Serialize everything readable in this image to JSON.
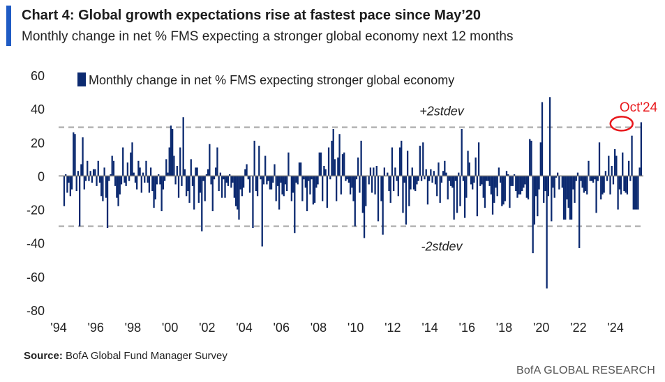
{
  "header": {
    "title": "Chart 4: Global growth expectations rise at fastest pace since May’20",
    "subtitle": "Monthly change in net % FMS expecting a stronger global economy next 12 months"
  },
  "footer": {
    "source_label": "Source:",
    "source_text": " BofA Global Fund Manager Survey",
    "brand": "BofA GLOBAL RESEARCH"
  },
  "colors": {
    "bar": "#0c2a70",
    "accent": "#1f5bc4",
    "highlight": "#e8171b",
    "band": "#b3b3b3"
  },
  "chart_data": {
    "type": "bar",
    "title": "Chart 4: Global growth expectations rise at fastest pace since May’20",
    "subtitle": "Monthly change in net % FMS expecting a stronger global economy next 12 months",
    "legend": "Monthly change in net % FMS expecting stronger global economy",
    "legend_position": "top-left",
    "ylim": [
      -80,
      60
    ],
    "yticks": [
      60,
      40,
      20,
      0,
      -20,
      -40,
      -60,
      -80
    ],
    "xlim": [
      1994,
      2025.5
    ],
    "xticks": [
      {
        "label": "'94",
        "value": 1994
      },
      {
        "label": "'96",
        "value": 1996
      },
      {
        "label": "'98",
        "value": 1998
      },
      {
        "label": "'00",
        "value": 2000
      },
      {
        "label": "'02",
        "value": 2002
      },
      {
        "label": "'04",
        "value": 2004
      },
      {
        "label": "'06",
        "value": 2006
      },
      {
        "label": "'08",
        "value": 2008
      },
      {
        "label": "'10",
        "value": 2010
      },
      {
        "label": "'12",
        "value": 2012
      },
      {
        "label": "'14",
        "value": 2014
      },
      {
        "label": "'16",
        "value": 2016
      },
      {
        "label": "'18",
        "value": 2018
      },
      {
        "label": "'20",
        "value": 2020
      },
      {
        "label": "'22",
        "value": 2022
      },
      {
        "label": "'24",
        "value": 2024
      }
    ],
    "reference_lines": [
      {
        "label": "+2stdev",
        "value": 29
      },
      {
        "label": "-2stdev",
        "value": -30
      }
    ],
    "callout": {
      "label": "Oct'24",
      "x": 2024.25,
      "y": 32
    },
    "series": [
      {
        "name": "Monthly change in net % FMS expecting stronger global economy",
        "start": 1994.3,
        "step": 0.08333,
        "values": [
          -18,
          1,
          -10,
          -4,
          -12,
          -8,
          26,
          25,
          -9,
          3,
          -30,
          7,
          23,
          -8,
          -3,
          9,
          -3,
          3,
          -4,
          4,
          4,
          -6,
          9,
          -4,
          -12,
          -15,
          5,
          -13,
          -31,
          -3,
          1,
          12,
          9,
          -6,
          -13,
          -18,
          -11,
          -5,
          17,
          -4,
          -6,
          8,
          -3,
          14,
          20,
          2,
          -4,
          -8,
          9,
          5,
          -10,
          2,
          -4,
          9,
          -4,
          -10,
          5,
          -9,
          -19,
          -14,
          -5,
          1,
          -5,
          -21,
          -8,
          -3,
          10,
          2,
          17,
          30,
          28,
          12,
          -5,
          6,
          -13,
          17,
          -6,
          35,
          4,
          -12,
          -9,
          -16,
          10,
          -6,
          -20,
          5,
          5,
          -16,
          -10,
          -33,
          -3,
          -15,
          1,
          4,
          19,
          -5,
          -21,
          -2,
          5,
          17,
          -9,
          2,
          -13,
          -2,
          -13,
          -4,
          -6,
          1,
          -7,
          -4,
          -13,
          -18,
          -20,
          -26,
          -8,
          -12,
          -7,
          4,
          7,
          -2,
          -10,
          0,
          -31,
          21,
          -9,
          -12,
          18,
          -2,
          -42,
          -5,
          12,
          -5,
          -3,
          -8,
          -8,
          -4,
          7,
          -15,
          -6,
          -20,
          -4,
          -11,
          -12,
          -5,
          -9,
          14,
          0,
          -15,
          -10,
          -34,
          -4,
          -5,
          8,
          8,
          -15,
          -2,
          -7,
          -21,
          -3,
          -11,
          -2,
          -17,
          -16,
          -7,
          -5,
          14,
          14,
          -15,
          6,
          4,
          -19,
          17,
          -2,
          21,
          28,
          10,
          -15,
          11,
          25,
          -11,
          13,
          14,
          -3,
          -2,
          -4,
          -11,
          -7,
          -15,
          -30,
          -2,
          11,
          -10,
          21,
          -22,
          -37,
          -18,
          0,
          -5,
          5,
          -10,
          5,
          -11,
          6,
          -27,
          0,
          -15,
          -35,
          5,
          0,
          2,
          -9,
          -16,
          17,
          -9,
          5,
          -3,
          -12,
          17,
          21,
          -22,
          -4,
          -29,
          15,
          -18,
          -8,
          5,
          -8,
          -9,
          -5,
          -3,
          18,
          -3,
          20,
          -2,
          4,
          -17,
          -3,
          4,
          -4,
          3,
          -5,
          -12,
          8,
          -16,
          -4,
          3,
          9,
          2,
          -14,
          -3,
          -6,
          -7,
          -26,
          -3,
          -22,
          2,
          -18,
          28,
          -3,
          -25,
          -13,
          15,
          8,
          -5,
          -8,
          -4,
          11,
          -24,
          20,
          -6,
          -5,
          -13,
          -19,
          -3,
          -3,
          -6,
          -11,
          -23,
          -16,
          -7,
          -12,
          5,
          -4,
          -18,
          -17,
          -15,
          3,
          1,
          -19,
          -6,
          -6,
          1,
          -9,
          -13,
          -11,
          -11,
          -9,
          -7,
          -5,
          -13,
          -14,
          22,
          21,
          -46,
          -29,
          -12,
          -24,
          -8,
          20,
          44,
          -16,
          -9,
          -67,
          -12,
          47,
          -27,
          -7,
          -13,
          -1,
          2,
          -8,
          0,
          -7,
          -26,
          -26,
          -14,
          -19,
          -26,
          -26,
          -8,
          -16,
          -3,
          2,
          -43,
          -3,
          -7,
          -10,
          -9,
          -11,
          9,
          -3,
          -3,
          -4,
          -2,
          -22,
          -3,
          20,
          -14,
          -11,
          -10,
          3,
          -3,
          12,
          -11,
          6,
          -5,
          16,
          12,
          -20,
          -8,
          -11,
          14,
          -9,
          -10,
          -11,
          9,
          -3,
          24,
          -20,
          -20,
          -20,
          -20,
          5,
          32
        ]
      }
    ]
  }
}
